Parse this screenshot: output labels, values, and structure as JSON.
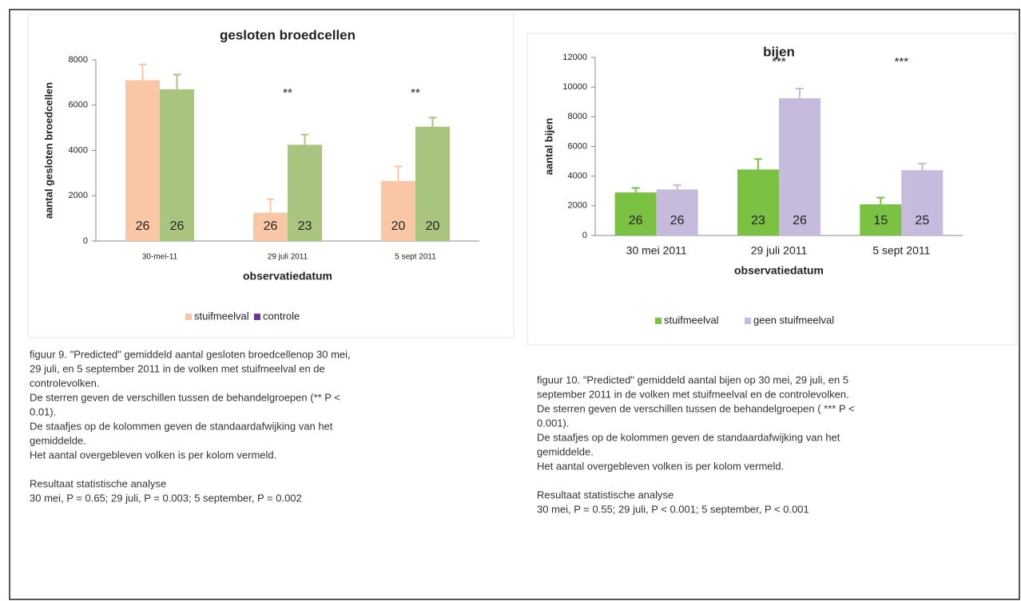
{
  "chart_data": [
    {
      "type": "bar",
      "title": "gesloten broedcellen",
      "x_label": "observatiedatum",
      "y_label": "aantal gesloten broedcellen",
      "categories": [
        "30-mei-11",
        "29 juli 2011",
        "5 sept 2011"
      ],
      "annotations": [
        null,
        "**",
        "**"
      ],
      "ylim": [
        0,
        8000
      ],
      "yticks": [
        0,
        2000,
        4000,
        6000,
        8000
      ],
      "series": [
        {
          "name": "stuifmeelval",
          "color": "#f9c6a6",
          "values": [
            7100,
            1250,
            2650
          ],
          "errors": [
            700,
            600,
            650
          ],
          "counts": [
            26,
            26,
            20
          ]
        },
        {
          "name": "controle",
          "color": "#a8c47e",
          "legend_color": "#7030a0",
          "values": [
            6700,
            4250,
            5050
          ],
          "errors": [
            650,
            450,
            400
          ],
          "counts": [
            26,
            23,
            20
          ]
        }
      ]
    },
    {
      "type": "bar",
      "title": "bijen",
      "x_label": "observatiedatum",
      "y_label": "aantal bijen",
      "categories": [
        "30 mei 2011",
        "29 juli 2011",
        "5 sept 2011"
      ],
      "annotations": [
        null,
        "***",
        "***"
      ],
      "ylim": [
        0,
        12000
      ],
      "yticks": [
        0,
        2000,
        4000,
        6000,
        8000,
        10000,
        12000
      ],
      "series": [
        {
          "name": "stuifmeelval",
          "color": "#7cc242",
          "values": [
            2900,
            4450,
            2100
          ],
          "errors": [
            300,
            700,
            450
          ],
          "counts": [
            26,
            23,
            15
          ]
        },
        {
          "name": "geen stuifmeelval",
          "color": "#c6badd",
          "values": [
            3100,
            9250,
            4400
          ],
          "errors": [
            300,
            650,
            450
          ],
          "counts": [
            26,
            26,
            25
          ]
        }
      ]
    }
  ],
  "captions": [
    {
      "lines": [
        "figuur 9. \"Predicted\" gemiddeld  aantal gesloten broedcellenop 30 mei,",
        "29 juli, en 5 september 2011 in de volken met stuifmeelval en de",
        "controlevolken.",
        "De sterren geven de verschillen tussen de behandelgroepen (**  P <",
        "0.01).",
        "De staafjes op de kolommen geven de  standaardafwijking van het",
        "gemiddelde.",
        "Het aantal overgebleven volken is per kolom vermeld."
      ],
      "analysis": [
        "Resultaat statistische analyse",
        "30 mei,  P = 0.65; 29 juli,  P = 0.003; 5 september,  P = 0.002"
      ]
    },
    {
      "lines": [
        "figuur 10.  \"Predicted\" gemiddeld  aantal bijen op 30 mei, 29 juli, en 5",
        "september 2011 in de volken met stuifmeelval en de controlevolken.",
        "De sterren geven de verschillen tussen de behandelgroepen ( *** P <",
        "0.001).",
        "De staafjes op de kolommen geven de  standaardafwijking van het",
        "gemiddelde.",
        "Het aantal overgebleven volken is per kolom vermeld."
      ],
      "analysis": [
        "Resultaat statistische analyse",
        "30 mei,  P = 0.55; 29 juli, P <  0.001; 5 september, P < 0.001"
      ]
    }
  ]
}
